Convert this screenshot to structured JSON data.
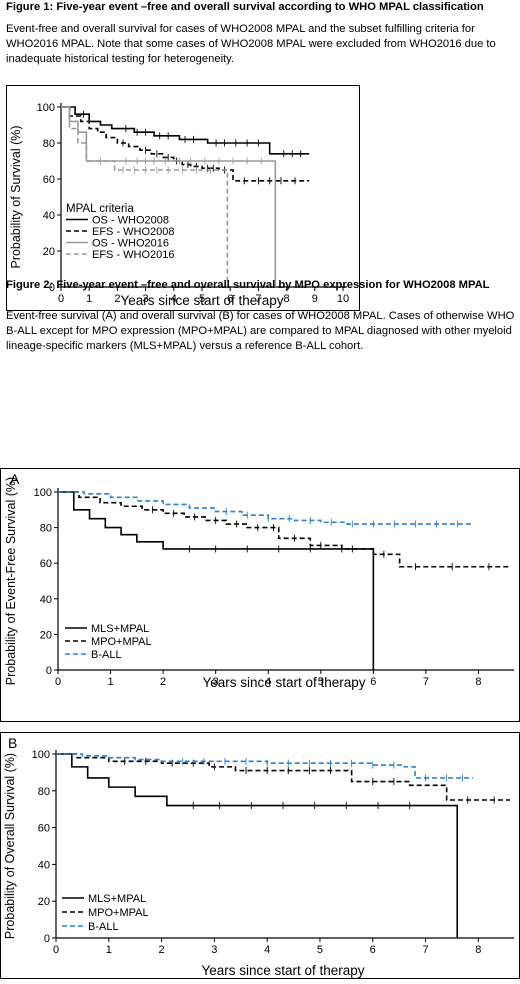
{
  "figure1": {
    "caption": "Figure 1:  Five-year event –free and overall survival according to WHO MPAL classification",
    "description": "Event-free and overall survival for cases of WHO2008 MPAL and the subset fulfilling criteria for WHO2016 MPAL. Note that some cases of WHO2008 MPAL were excluded from WHO2016 due to inadequate historical testing for heterogeneity."
  },
  "figure2": {
    "caption": "Figure 2: Five-year event –free and overall survival by MPO expression for WHO2008 MPAL",
    "description": "Event-free survival (A) and overall survival (B) for cases of WHO2008 MPAL.  Cases of otherwise WHO B-ALL except for MPO expression (MPO+MPAL) are compared to MPAL diagnosed with other myeloid lineage-specific markers (MLS+MPAL) versus a reference B-ALL cohort."
  },
  "chart_data": [
    {
      "id": "fig1",
      "type": "line",
      "subtype": "kaplan-meier step",
      "panel_label": "",
      "xlabel": "Years since start of therapy",
      "ylabel": "Probability of Survival (%)",
      "xlim": [
        0,
        10
      ],
      "ylim": [
        0,
        100
      ],
      "x_ticks": [
        0,
        1,
        2,
        3,
        4,
        5,
        6,
        7,
        8,
        9,
        10
      ],
      "y_ticks": [
        0,
        20,
        40,
        60,
        80,
        100
      ],
      "legend_title": "MPAL criteria",
      "legend_position": "bottom-left",
      "series": [
        {
          "name": "OS - WHO2008",
          "color": "#000000",
          "dash": "solid",
          "x": [
            0,
            0.5,
            1.0,
            1.4,
            1.8,
            2.6,
            3.3,
            4.2,
            5.2,
            7.4,
            8.8
          ],
          "y": [
            100,
            96,
            92,
            90,
            88,
            86,
            84,
            82,
            80,
            74,
            74
          ],
          "drop_at": null,
          "censor_x": [
            0.8,
            2.3,
            2.7,
            3.0,
            3.5,
            3.8,
            4.4,
            4.7,
            5.5,
            5.8,
            6.2,
            6.6,
            7.0,
            7.9,
            8.2,
            8.5
          ]
        },
        {
          "name": "EFS - WHO2008",
          "color": "#000000",
          "dash": "dashed",
          "x": [
            0,
            0.3,
            0.7,
            1.0,
            1.3,
            1.6,
            2.0,
            2.4,
            2.8,
            3.2,
            3.6,
            4.0,
            4.3,
            4.6,
            5.0,
            5.6,
            6.1,
            8.8
          ],
          "y": [
            100,
            95,
            92,
            88,
            86,
            83,
            80,
            78,
            76,
            74,
            72,
            70,
            68,
            67,
            66,
            65,
            59,
            59
          ],
          "drop_at": null,
          "censor_x": [
            2.2,
            3.0,
            3.4,
            3.8,
            4.1,
            4.5,
            4.8,
            5.2,
            5.4,
            5.8,
            6.5,
            7.0,
            7.4,
            7.8,
            8.3
          ]
        },
        {
          "name": "OS - WHO2016",
          "color": "#9a9a9a",
          "dash": "solid",
          "x": [
            0,
            0.3,
            0.6,
            0.9,
            2.0,
            7.6
          ],
          "y": [
            100,
            92,
            86,
            70,
            70,
            70
          ],
          "drop_at": 7.6,
          "censor_x": [
            1.4,
            2.3,
            2.7,
            3.0,
            3.3,
            3.7,
            4.2,
            4.6,
            5.1,
            5.6,
            6.1,
            6.6,
            7.1
          ]
        },
        {
          "name": "EFS - WHO2016",
          "color": "#9a9a9a",
          "dash": "dashed",
          "x": [
            0,
            0.3,
            0.6,
            0.9,
            1.9,
            5.9
          ],
          "y": [
            100,
            88,
            80,
            70,
            65,
            65
          ],
          "drop_at": 5.9,
          "censor_x": [
            2.2,
            2.6,
            3.0,
            3.4,
            3.8,
            4.3,
            4.8,
            5.3
          ]
        }
      ]
    },
    {
      "id": "fig2a",
      "type": "line",
      "subtype": "kaplan-meier step",
      "panel_label": "A",
      "xlabel": "Years since start of therapy",
      "ylabel": "Probability of Event-Free Survival (%)",
      "xlim": [
        0,
        8.6
      ],
      "ylim": [
        0,
        100
      ],
      "x_ticks": [
        0,
        1,
        2,
        3,
        4,
        5,
        6,
        7,
        8
      ],
      "y_ticks": [
        0,
        20,
        40,
        60,
        80,
        100
      ],
      "legend_title": "",
      "legend_position": "bottom-left",
      "series": [
        {
          "name": "MLS+MPAL",
          "color": "#000000",
          "dash": "solid",
          "x": [
            0,
            0.3,
            0.6,
            0.9,
            1.2,
            1.5,
            2.0,
            6.0
          ],
          "y": [
            100,
            90,
            85,
            80,
            76,
            72,
            68,
            68
          ],
          "drop_at": 6.0,
          "censor_x": [
            2.5,
            3.0,
            3.6,
            4.2,
            4.8,
            5.4
          ]
        },
        {
          "name": "MPO+MPAL",
          "color": "#000000",
          "dash": "dashed",
          "x": [
            0,
            0.4,
            0.8,
            1.2,
            1.6,
            2.0,
            2.4,
            2.8,
            3.2,
            3.6,
            4.2,
            4.8,
            5.4,
            6.0,
            6.5,
            8.6
          ],
          "y": [
            100,
            97,
            94,
            92,
            90,
            88,
            86,
            84,
            82,
            80,
            74,
            70,
            68,
            65,
            58,
            58
          ],
          "drop_at": null,
          "censor_x": [
            1.8,
            2.2,
            2.6,
            3.0,
            3.4,
            3.8,
            4.1,
            4.5,
            5.0,
            5.6,
            6.2,
            6.8,
            7.5,
            8.2
          ]
        },
        {
          "name": "B-ALL",
          "color": "#2f80d0",
          "dash": "dashed",
          "x": [
            0,
            0.5,
            1.0,
            1.5,
            2.0,
            2.5,
            3.0,
            3.5,
            4.0,
            4.5,
            5.0,
            5.5,
            7.9
          ],
          "y": [
            100,
            99,
            97,
            95,
            93,
            91,
            89,
            87,
            85,
            84,
            83,
            82,
            82
          ],
          "drop_at": null,
          "censor_x": [
            3.2,
            3.6,
            4.0,
            4.4,
            4.8,
            5.2,
            5.6,
            6.0,
            6.4,
            6.8,
            7.2,
            7.6
          ]
        }
      ]
    },
    {
      "id": "fig2b",
      "type": "line",
      "subtype": "kaplan-meier step",
      "panel_label": "B",
      "xlabel": "Years since start of therapy",
      "ylabel": "Probability of Overall Survival (%)",
      "xlim": [
        0,
        8.6
      ],
      "ylim": [
        0,
        100
      ],
      "x_ticks": [
        0,
        1,
        2,
        3,
        4,
        5,
        6,
        7,
        8
      ],
      "y_ticks": [
        0,
        20,
        40,
        60,
        80,
        100
      ],
      "legend_title": "",
      "legend_position": "bottom-left",
      "series": [
        {
          "name": "MLS+MPAL",
          "color": "#000000",
          "dash": "solid",
          "x": [
            0,
            0.3,
            0.6,
            1.0,
            1.5,
            2.1,
            7.6
          ],
          "y": [
            100,
            93,
            87,
            82,
            77,
            72,
            72
          ],
          "drop_at": 7.6,
          "censor_x": [
            2.6,
            3.1,
            3.7,
            4.3,
            4.9,
            5.5,
            6.1,
            6.7
          ]
        },
        {
          "name": "MPO+MPAL",
          "color": "#000000",
          "dash": "dashed",
          "x": [
            0,
            0.4,
            1.0,
            2.0,
            2.9,
            3.4,
            5.6,
            6.7,
            7.4,
            8.6
          ],
          "y": [
            100,
            98,
            96,
            95,
            93,
            91,
            85,
            83,
            75,
            75
          ],
          "drop_at": null,
          "censor_x": [
            1.3,
            1.7,
            2.2,
            2.6,
            3.0,
            3.6,
            4.0,
            4.4,
            4.8,
            5.2,
            6.0,
            6.4,
            7.8,
            8.3
          ]
        },
        {
          "name": "B-ALL",
          "color": "#2f80d0",
          "dash": "dashed",
          "x": [
            0,
            0.5,
            1.0,
            1.5,
            2.0,
            3.0,
            4.0,
            5.0,
            6.0,
            6.6,
            6.8,
            7.9
          ],
          "y": [
            100,
            99,
            98,
            97,
            96,
            96,
            95,
            95,
            94,
            93,
            87,
            87
          ],
          "drop_at": null,
          "censor_x": [
            2.4,
            2.8,
            3.2,
            3.6,
            4.0,
            4.4,
            4.8,
            5.2,
            5.6,
            6.0,
            6.4,
            7.0,
            7.4,
            7.7
          ]
        }
      ]
    }
  ]
}
